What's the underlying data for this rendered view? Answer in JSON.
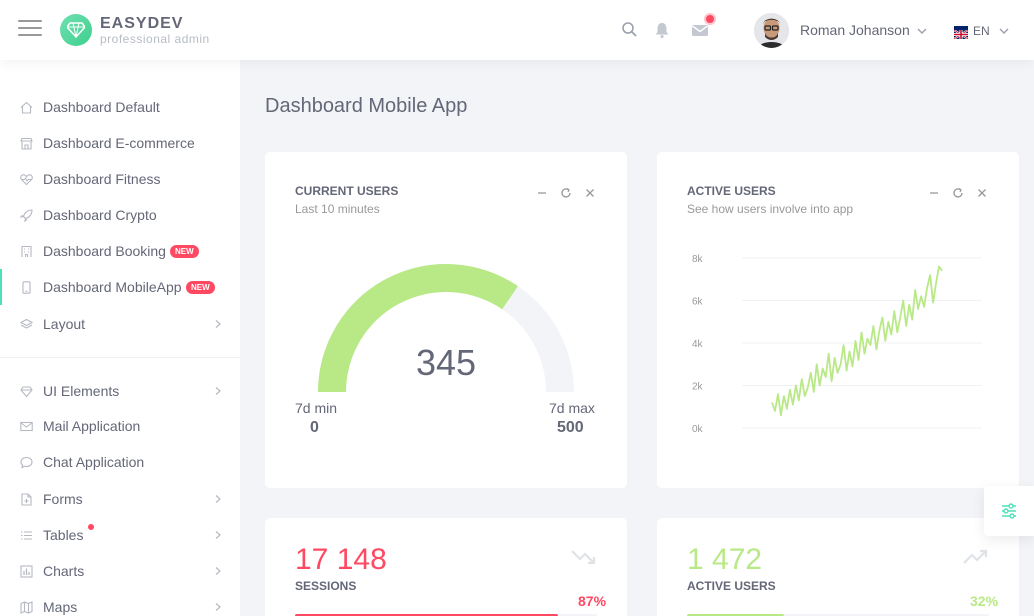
{
  "brand": {
    "title": "EASYDEV",
    "subtitle": "professional admin"
  },
  "topbar": {
    "icons": [
      "menu-icon",
      "search-icon",
      "bell-icon",
      "mail-icon"
    ],
    "user_name": "Roman Johanson",
    "language": "EN"
  },
  "sidebar": {
    "items": [
      {
        "label": "Dashboard Default",
        "icon": "home-icon"
      },
      {
        "label": "Dashboard E-commerce",
        "icon": "store-icon"
      },
      {
        "label": "Dashboard Fitness",
        "icon": "heart-pulse-icon"
      },
      {
        "label": "Dashboard Crypto",
        "icon": "rocket-icon"
      },
      {
        "label": "Dashboard Booking",
        "icon": "building-icon",
        "badge": "NEW"
      },
      {
        "label": "Dashboard MobileApp",
        "icon": "phone-icon",
        "badge": "NEW",
        "active": true
      },
      {
        "label": "Layout",
        "icon": "layers-icon"
      },
      {
        "label": "UI Elements",
        "icon": "diamond-icon"
      },
      {
        "label": "Mail Application",
        "icon": "envelope-icon"
      },
      {
        "label": "Chat Application",
        "icon": "chat-bubble-icon"
      },
      {
        "label": "Forms",
        "icon": "file-add-icon"
      },
      {
        "label": "Tables",
        "icon": "list-icon"
      },
      {
        "label": "Charts",
        "icon": "chart-bars-icon"
      },
      {
        "label": "Maps",
        "icon": "map-icon"
      }
    ]
  },
  "page": {
    "title": "Dashboard Mobile App"
  },
  "current_users": {
    "title": "CURRENT USERS",
    "subtitle": "Last 10 minutes",
    "value": "345",
    "min_label": "7d min",
    "min_value": "0",
    "max_label": "7d max",
    "max_value": "500",
    "fill_fraction": 0.69
  },
  "active_users_chart": {
    "title": "ACTIVE USERS",
    "subtitle": "See how users involve into app"
  },
  "sessions": {
    "value": "17 148",
    "label": "SESSIONS",
    "percent": "87%",
    "color": "#ff4861"
  },
  "active_users_stat": {
    "value": "1 472",
    "label": "ACTIVE USERS",
    "percent": "32%",
    "color": "#b8e986"
  },
  "colors": {
    "accent": "#4ce1b6",
    "gauge": "#b8e986",
    "danger": "#ff4861"
  },
  "chart_data": {
    "type": "line",
    "ylim": [
      0,
      8000
    ],
    "yticks": [
      "8k",
      "6k",
      "4k",
      "2k",
      "0k"
    ],
    "series": [
      {
        "color": "#b8e986",
        "values": [
          1200,
          800,
          1600,
          600,
          1500,
          900,
          1800,
          1100,
          2000,
          1300,
          2300,
          1500,
          1900,
          2600,
          1700,
          3000,
          2000,
          2800,
          2400,
          3500,
          2200,
          3300,
          2600,
          3000,
          3900,
          2700,
          3600,
          2900,
          4100,
          3200,
          4500,
          3500,
          4200,
          3900,
          4800,
          3700,
          4600,
          5200,
          4100,
          5000,
          4400,
          5500,
          4500,
          5200,
          6000,
          4800,
          5800,
          5100,
          6500,
          5600,
          6200,
          5700,
          6600,
          7200,
          5900,
          6800,
          7600,
          7400
        ]
      }
    ]
  }
}
